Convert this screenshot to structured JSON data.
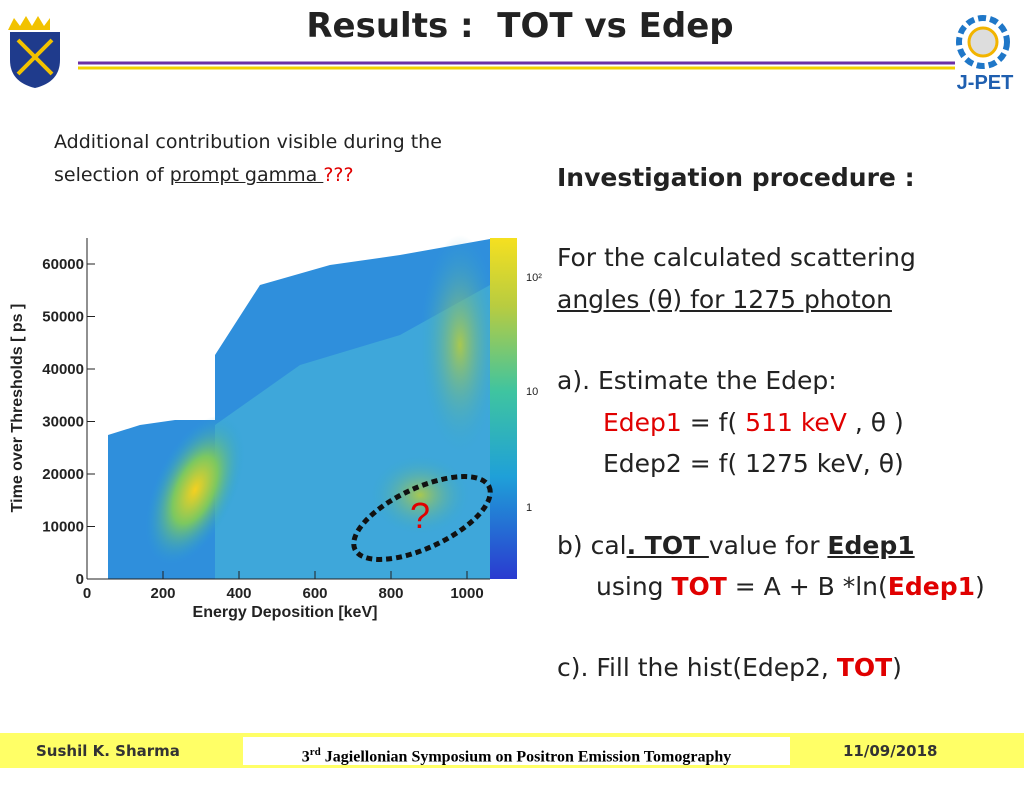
{
  "header": {
    "title": "Results :  TOT vs Edep",
    "logo_right": "J-PET"
  },
  "left_note": {
    "line1": "Additional contribution visible during the",
    "line2_start": "selection of ",
    "underlined": "prompt gamma ",
    "marks": "???"
  },
  "figure": {
    "y_label": "Time over Thresholds [ ps ]",
    "x_label": "Energy Deposition [keV]",
    "x_ticks": [
      0,
      200,
      400,
      600,
      800,
      1000
    ],
    "y_ticks": [
      0,
      10000,
      20000,
      30000,
      40000,
      50000,
      60000
    ],
    "colorbar_ticks": [
      "10²",
      "10",
      "1"
    ],
    "annotation": "?"
  },
  "procedure": {
    "heading": "Investigation procedure :",
    "lines": [
      [
        "For the calculated scattering"
      ],
      [
        "angles (θ) for 1275 photon"
      ],
      [
        "a). Estimate the Edep:"
      ],
      [
        "Edep1",
        " = f( ",
        "511 keV",
        " , θ )"
      ],
      [
        "Edep2 = f( 1275 keV, θ)"
      ],
      [
        "b) cal",
        ". TOT ",
        "value for ",
        "Edep1"
      ],
      [
        "using ",
        "TOT",
        " = A + B *ln(",
        "Edep1",
        ")"
      ],
      [
        "c). Fill the hist(Edep2, ",
        "TOT",
        ")"
      ]
    ]
  },
  "footer": {
    "author": "Sushil K. Sharma",
    "event_num": "3",
    "event_sup": "rd",
    "event": " Jagiellonian Symposium on Positron Emission Tomography",
    "date": "11/09/2018"
  }
}
